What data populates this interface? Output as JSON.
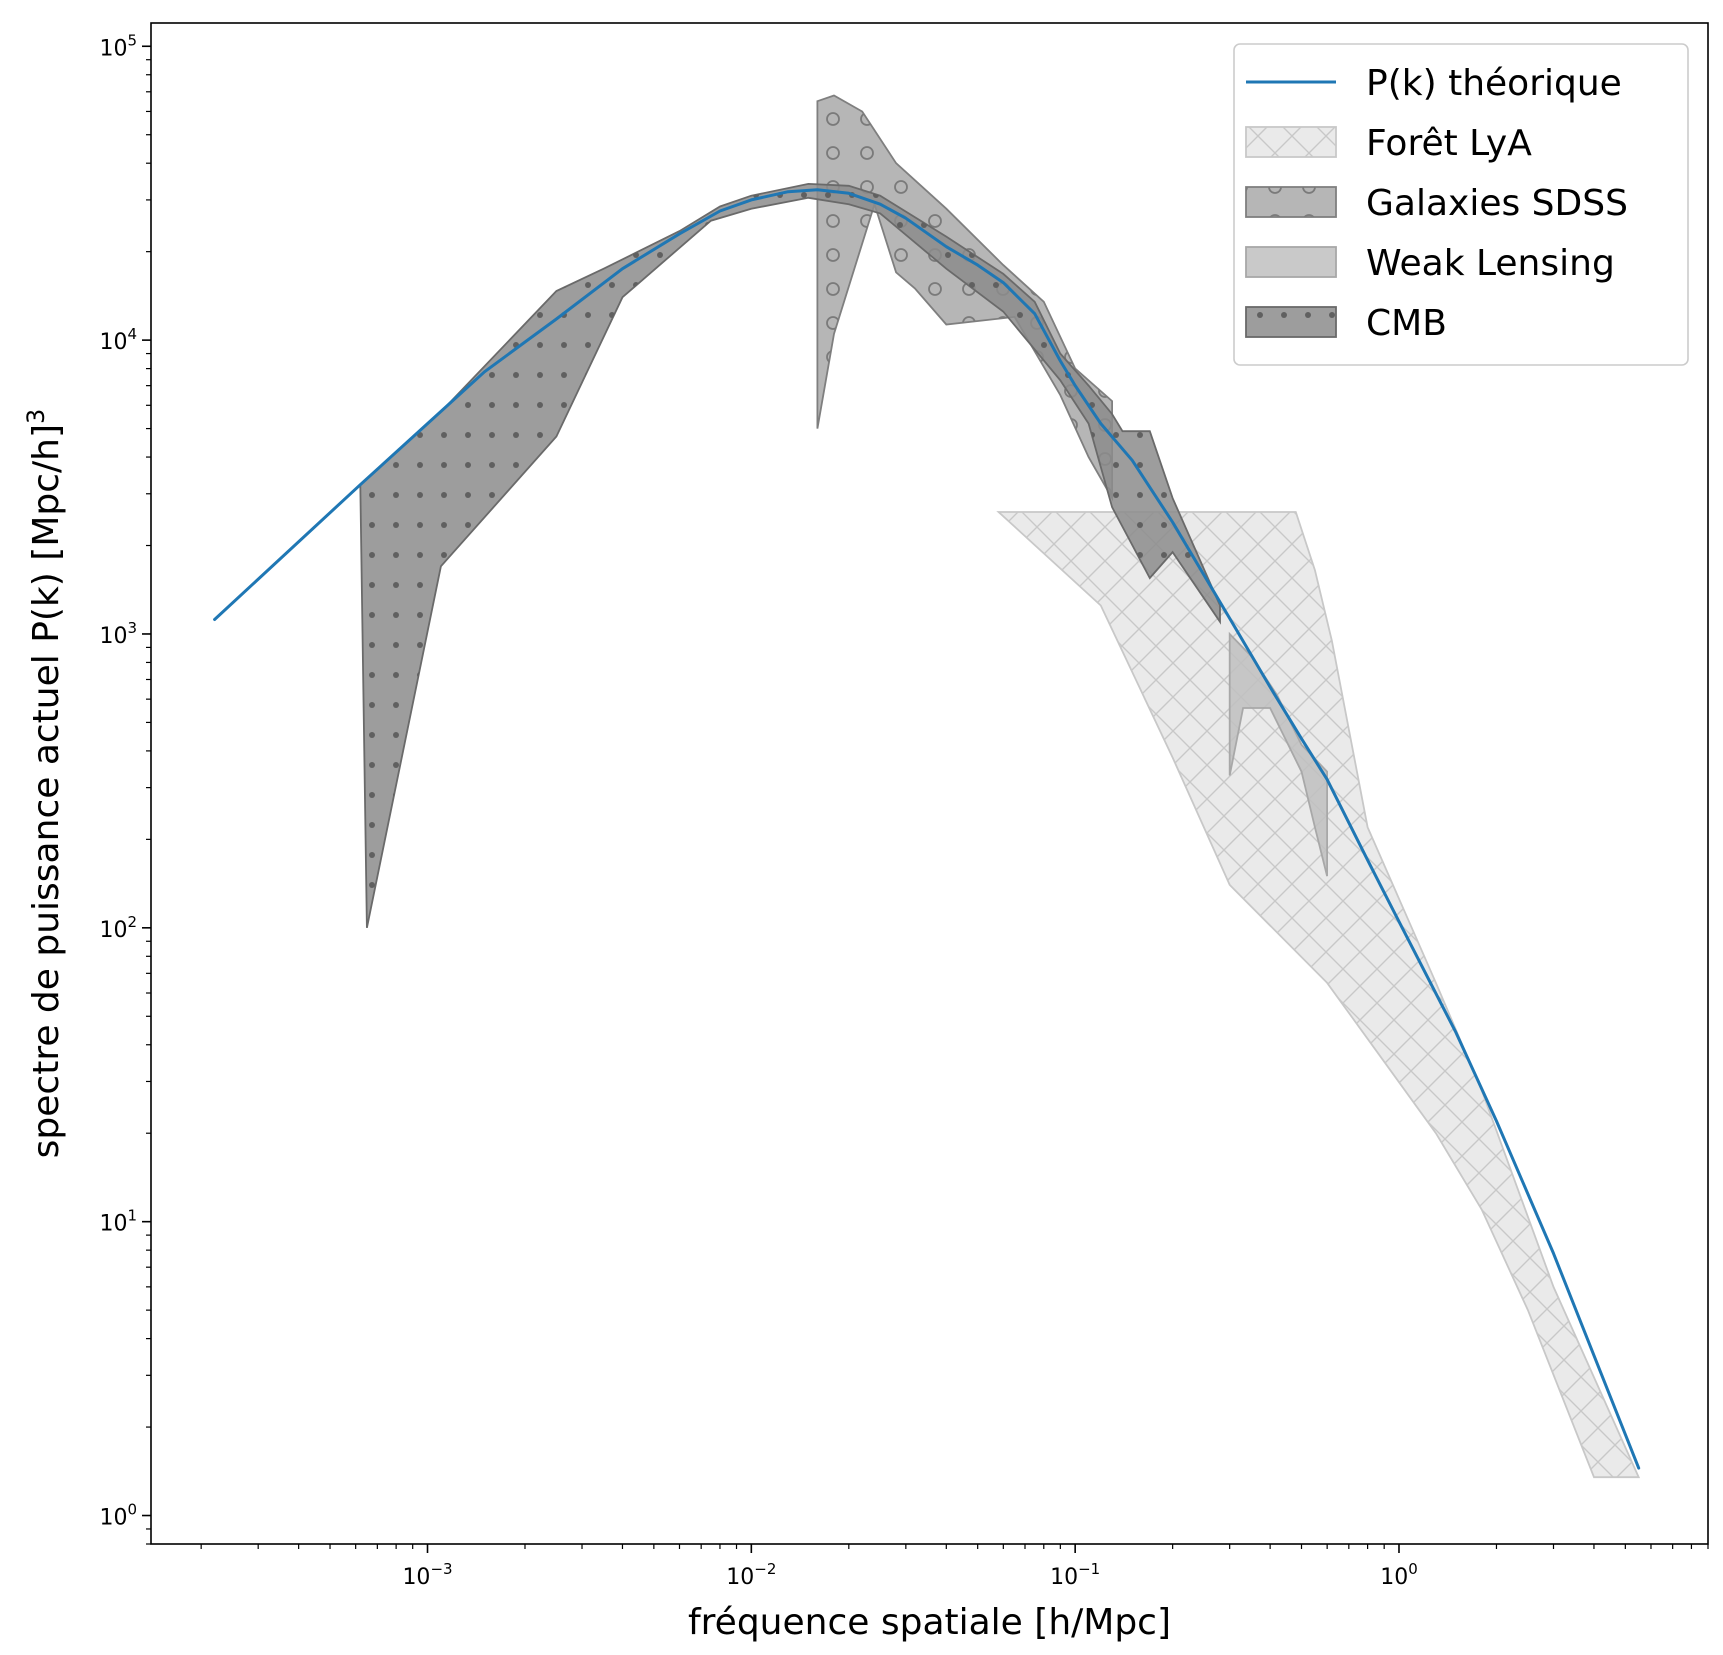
{
  "chart_data": {
    "type": "area",
    "xlabel": "fréquence spatiale [h/Mpc]",
    "ylabel": "spectre de puissance actuel P(k) [Mpc/h]",
    "ylabel_sup": "3",
    "xscale": "log",
    "yscale": "log",
    "xlim": [
      0.00014,
      9.0
    ],
    "ylim": [
      0.8,
      120000
    ],
    "x_ticks": [
      {
        "value": 0.001,
        "base": "10",
        "exp": "−3"
      },
      {
        "value": 0.01,
        "base": "10",
        "exp": "−2"
      },
      {
        "value": 0.1,
        "base": "10",
        "exp": "−1"
      },
      {
        "value": 1,
        "base": "10",
        "exp": "0"
      }
    ],
    "y_ticks": [
      {
        "value": 1,
        "base": "10",
        "exp": "0"
      },
      {
        "value": 10,
        "base": "10",
        "exp": "1"
      },
      {
        "value": 100,
        "base": "10",
        "exp": "2"
      },
      {
        "value": 1000,
        "base": "10",
        "exp": "3"
      },
      {
        "value": 10000,
        "base": "10",
        "exp": "4"
      },
      {
        "value": 100000,
        "base": "10",
        "exp": "5"
      }
    ],
    "grid": false,
    "legend_position": "top-right",
    "series": [
      {
        "name": "P(k) théorique",
        "kind": "line",
        "color": "#1f77b4",
        "points": [
          [
            0.00022,
            1120
          ],
          [
            0.00062,
            3220
          ],
          [
            0.001,
            5200
          ],
          [
            0.0015,
            7800
          ],
          [
            0.0025,
            11800
          ],
          [
            0.004,
            17500
          ],
          [
            0.006,
            23000
          ],
          [
            0.008,
            27500
          ],
          [
            0.01,
            30000
          ],
          [
            0.013,
            32000
          ],
          [
            0.016,
            32500
          ],
          [
            0.02,
            31600
          ],
          [
            0.025,
            29000
          ],
          [
            0.03,
            26000
          ],
          [
            0.04,
            20800
          ],
          [
            0.05,
            18000
          ],
          [
            0.06,
            15700
          ],
          [
            0.075,
            12300
          ],
          [
            0.09,
            8500
          ],
          [
            0.1,
            7000
          ],
          [
            0.12,
            5200
          ],
          [
            0.15,
            3900
          ],
          [
            0.2,
            2400
          ],
          [
            0.3,
            1130
          ],
          [
            0.4,
            660
          ],
          [
            0.5,
            440
          ],
          [
            0.6,
            320
          ],
          [
            0.8,
            170
          ],
          [
            1.0,
            105
          ],
          [
            1.5,
            44
          ],
          [
            2.0,
            22
          ],
          [
            3.0,
            7.8
          ],
          [
            4.0,
            3.5
          ],
          [
            5.5,
            1.45
          ]
        ]
      },
      {
        "name": "Forêt LyA",
        "kind": "band",
        "fill": "#e6e6e6",
        "edge": "#c8c8c8",
        "hatch": "cross",
        "upper": [
          [
            0.058,
            2600
          ],
          [
            0.48,
            2600
          ],
          [
            0.55,
            1650
          ],
          [
            0.62,
            950
          ],
          [
            0.8,
            220
          ],
          [
            1.3,
            65
          ],
          [
            1.8,
            28
          ],
          [
            3.0,
            6
          ],
          [
            5.5,
            1.35
          ]
        ],
        "lower": [
          [
            0.058,
            2600
          ],
          [
            0.12,
            1250
          ],
          [
            0.2,
            380
          ],
          [
            0.3,
            140
          ],
          [
            0.6,
            65
          ],
          [
            1.3,
            20
          ],
          [
            1.8,
            11
          ],
          [
            2.5,
            5
          ],
          [
            4.0,
            1.35
          ],
          [
            5.5,
            1.35
          ]
        ]
      },
      {
        "name": "Galaxies SDSS",
        "kind": "band",
        "fill": "#a9a9a9",
        "edge": "#7f7f7f",
        "hatch": "circles",
        "upper": [
          [
            0.016,
            65000
          ],
          [
            0.018,
            68000
          ],
          [
            0.022,
            60000
          ],
          [
            0.028,
            40000
          ],
          [
            0.04,
            28000
          ],
          [
            0.06,
            18000
          ],
          [
            0.08,
            13500
          ],
          [
            0.1,
            8000
          ],
          [
            0.13,
            6200
          ]
        ],
        "lower": [
          [
            0.016,
            5000
          ],
          [
            0.018,
            10500
          ],
          [
            0.024,
            29000
          ],
          [
            0.028,
            17000
          ],
          [
            0.032,
            15000
          ],
          [
            0.04,
            11300
          ],
          [
            0.065,
            12000
          ],
          [
            0.09,
            6500
          ],
          [
            0.11,
            4000
          ],
          [
            0.13,
            2900
          ]
        ]
      },
      {
        "name": "Weak Lensing",
        "kind": "band",
        "fill": "#c0c0c0",
        "edge": "#a8a8a8",
        "hatch": "none",
        "upper": [
          [
            0.3,
            1000
          ],
          [
            0.35,
            840
          ],
          [
            0.42,
            620
          ],
          [
            0.5,
            420
          ],
          [
            0.6,
            340
          ]
        ],
        "lower": [
          [
            0.3,
            330
          ],
          [
            0.33,
            560
          ],
          [
            0.4,
            560
          ],
          [
            0.5,
            340
          ],
          [
            0.55,
            220
          ],
          [
            0.6,
            150
          ]
        ]
      },
      {
        "name": "CMB",
        "kind": "band",
        "fill": "#8c8c8c",
        "edge": "#6a6a6a",
        "hatch": "dots",
        "upper": [
          [
            0.00062,
            3220
          ],
          [
            0.0011,
            5700
          ],
          [
            0.0025,
            14700
          ],
          [
            0.0035,
            17500
          ],
          [
            0.006,
            23500
          ],
          [
            0.008,
            28500
          ],
          [
            0.01,
            31000
          ],
          [
            0.015,
            34000
          ],
          [
            0.02,
            33500
          ],
          [
            0.025,
            31000
          ],
          [
            0.04,
            22500
          ],
          [
            0.06,
            16800
          ],
          [
            0.075,
            13500
          ],
          [
            0.09,
            9000
          ],
          [
            0.11,
            7000
          ],
          [
            0.13,
            5600
          ],
          [
            0.14,
            4900
          ],
          [
            0.17,
            4900
          ],
          [
            0.2,
            2900
          ],
          [
            0.28,
            1250
          ]
        ],
        "lower": [
          [
            0.28,
            1100
          ],
          [
            0.2,
            1900
          ],
          [
            0.17,
            1550
          ],
          [
            0.13,
            2700
          ],
          [
            0.11,
            5200
          ],
          [
            0.09,
            7300
          ],
          [
            0.06,
            12500
          ],
          [
            0.04,
            17500
          ],
          [
            0.025,
            27000
          ],
          [
            0.02,
            29000
          ],
          [
            0.015,
            30500
          ],
          [
            0.01,
            28000
          ],
          [
            0.0075,
            25500
          ],
          [
            0.004,
            14000
          ],
          [
            0.0025,
            4700
          ],
          [
            0.0011,
            1700
          ],
          [
            0.00065,
            100
          ]
        ]
      }
    ]
  }
}
